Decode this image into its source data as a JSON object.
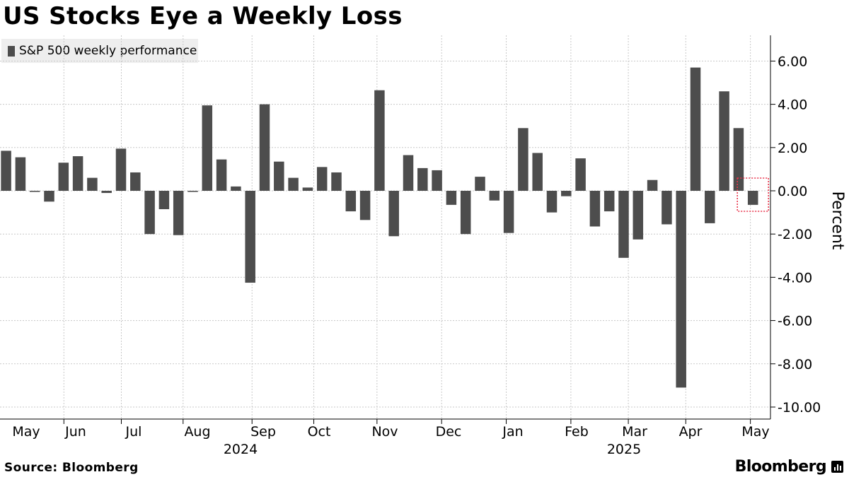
{
  "title": "US Stocks Eye a Weekly Loss",
  "legend": {
    "label": "S&P 500 weekly performance",
    "color": "#4d4d4d"
  },
  "source": "Source: Bloomberg",
  "brand": "Bloomberg",
  "colors": {
    "bar": "#4d4d4d",
    "grid": "#c8c8c8",
    "axis": "#000000",
    "highlight": "#e8344b"
  },
  "chart_data": {
    "type": "bar",
    "ylabel": "Percent",
    "ylim": [
      -10.5,
      7.2
    ],
    "y_ticks": [
      6,
      4,
      2,
      0,
      -2,
      -4,
      -6,
      -8,
      -10
    ],
    "y_tick_labels": [
      "6.00",
      "4.00",
      "2.00",
      "0.00",
      "-2.00",
      "-4.00",
      "-6.00",
      "-8.00",
      "-10.00"
    ],
    "grid": true,
    "legend_position": "top-left",
    "month_labels": [
      {
        "label": "May",
        "after_bar": 0.0
      },
      {
        "label": "Jun",
        "after_bar": 4.5
      },
      {
        "label": "Jul",
        "after_bar": 8.5
      },
      {
        "label": "Aug",
        "after_bar": 12.8
      },
      {
        "label": "Sep",
        "after_bar": 17.6
      },
      {
        "label": "Oct",
        "after_bar": 21.9
      },
      {
        "label": "Nov",
        "after_bar": 26.3
      },
      {
        "label": "Dec",
        "after_bar": 30.8
      },
      {
        "label": "Jan",
        "after_bar": 35.3
      },
      {
        "label": "Feb",
        "after_bar": 39.8
      },
      {
        "label": "Mar",
        "after_bar": 43.8
      },
      {
        "label": "Apr",
        "after_bar": 47.8
      },
      {
        "label": "May",
        "after_bar": 52.3
      }
    ],
    "year_labels": [
      {
        "label": "2024",
        "after_bar": 16.6
      },
      {
        "label": "2025",
        "after_bar": 42.8
      }
    ],
    "highlight_bar_index": 52,
    "values": [
      1.85,
      1.55,
      -0.05,
      -0.5,
      1.3,
      1.6,
      0.6,
      -0.1,
      1.95,
      0.85,
      -2.0,
      -0.85,
      -2.05,
      -0.05,
      3.95,
      1.45,
      0.2,
      -4.25,
      4.0,
      1.35,
      0.6,
      0.15,
      1.1,
      0.85,
      -0.95,
      -1.35,
      4.65,
      -2.1,
      1.65,
      1.05,
      0.95,
      -0.65,
      -2.0,
      0.65,
      -0.45,
      -1.95,
      2.9,
      1.75,
      -1.0,
      -0.25,
      1.5,
      -1.65,
      -0.95,
      -3.1,
      -2.25,
      0.5,
      -1.55,
      -9.1,
      5.7,
      -1.5,
      4.6,
      2.9,
      -0.65
    ]
  }
}
